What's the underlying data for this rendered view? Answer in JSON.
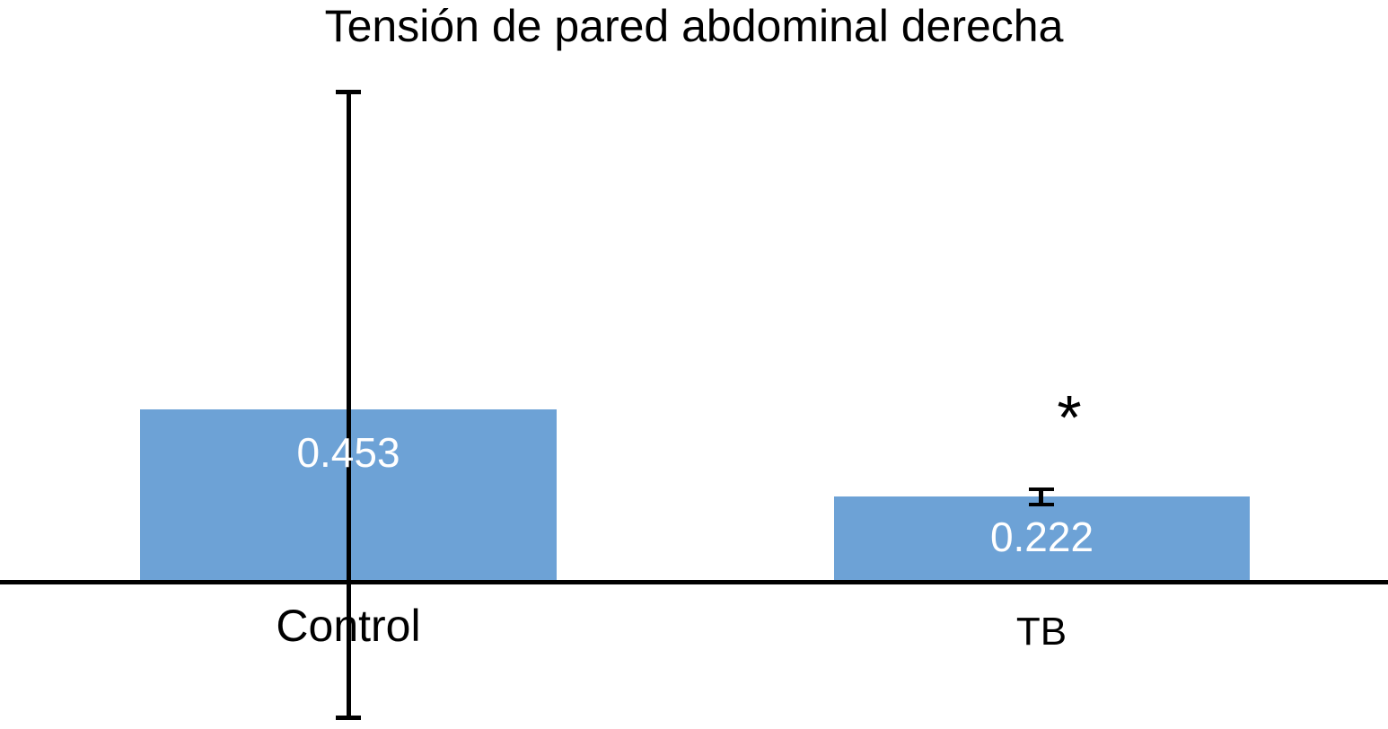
{
  "chart_data": {
    "type": "bar",
    "title": "Tensión de pared abdominal derecha",
    "categories": [
      "Control",
      "TB"
    ],
    "values": [
      0.453,
      0.222
    ],
    "data_labels": [
      "0.453",
      "0.222"
    ],
    "series": [
      {
        "name": "Tensión de pared abdominal derecha",
        "values": [
          0.453,
          0.222
        ]
      }
    ],
    "significance": {
      "text": "*",
      "category": "TB",
      "position": "above-bar"
    },
    "error_bars": [
      {
        "category": "Control",
        "center": 0.453,
        "plus_est": 0.82,
        "minus_est": 0.82,
        "extends_below_axis": true
      },
      {
        "category": "TB",
        "center": 0.222,
        "plus_est": 0.025,
        "minus_est": 0.025,
        "extends_below_axis": false
      }
    ],
    "xlabel": "",
    "ylabel": "",
    "ylim_visible_est": [
      -0.36,
      1.3
    ],
    "baseline_value": 0,
    "grid": false,
    "y_axis_ticks_visible": false,
    "legend": null,
    "colors": {
      "bar_fill": "#6DA2D6",
      "value_label_text": "#FFFFFF",
      "axis_and_text": "#000000",
      "background": "#FFFFFF"
    }
  }
}
